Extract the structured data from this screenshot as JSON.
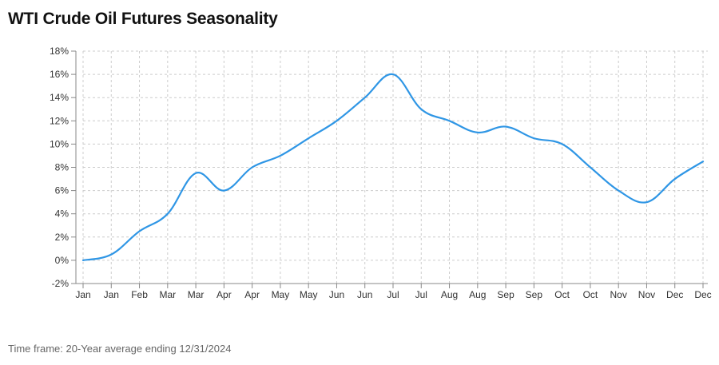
{
  "title": "WTI Crude Oil Futures Seasonality",
  "footer": "Time frame: 20-Year average ending 12/31/2024",
  "colors": {
    "line": "#2f96e5",
    "grid": "#cccccc",
    "axis": "#888888"
  },
  "chart_data": {
    "type": "line",
    "title": "WTI Crude Oil Futures Seasonality",
    "xlabel": "",
    "ylabel": "",
    "categories": [
      "Jan",
      "Jan",
      "Feb",
      "Mar",
      "Mar",
      "Apr",
      "Apr",
      "May",
      "May",
      "Jun",
      "Jun",
      "Jul",
      "Jul",
      "Aug",
      "Aug",
      "Sep",
      "Sep",
      "Oct",
      "Oct",
      "Nov",
      "Nov",
      "Dec",
      "Dec"
    ],
    "values": [
      0,
      0.5,
      2.5,
      4,
      7.5,
      6,
      8,
      9,
      10.5,
      12,
      14,
      16,
      13,
      12,
      11,
      11.5,
      10.5,
      10,
      8,
      6,
      5,
      7,
      8.5
    ],
    "ylim": [
      -2,
      18
    ],
    "yticks": [
      -2,
      0,
      2,
      4,
      6,
      8,
      10,
      12,
      14,
      16,
      18
    ],
    "ytick_suffix": "%",
    "grid": true,
    "legend": "none"
  }
}
